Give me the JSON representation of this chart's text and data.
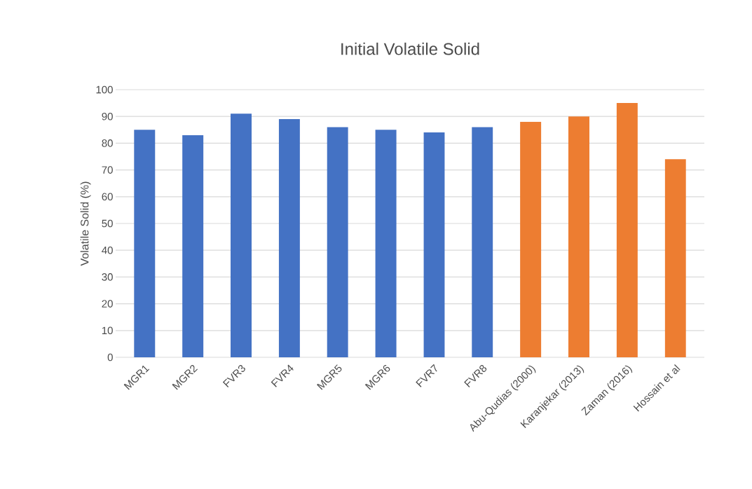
{
  "chart_data": {
    "type": "bar",
    "title": "Initial Volatile Solid",
    "ylabel": "Volatile Solid (%)",
    "categories": [
      "MGR1",
      "MGR2",
      "FVR3",
      "FVR4",
      "MGR5",
      "MGR6",
      "FVR7",
      "FVR8",
      "Abu-Qudias (2000)",
      "Karanjekar (2013)",
      "Zaman (2016)",
      "Hossain et al"
    ],
    "values": [
      85,
      83,
      91,
      89,
      86,
      85,
      84,
      86,
      88,
      90,
      95,
      74
    ],
    "colors": [
      "#4472c4",
      "#4472c4",
      "#4472c4",
      "#4472c4",
      "#4472c4",
      "#4472c4",
      "#4472c4",
      "#4472c4",
      "#ed7d31",
      "#ed7d31",
      "#ed7d31",
      "#ed7d31"
    ],
    "ylim": [
      0,
      100
    ],
    "yticks": [
      0,
      10,
      20,
      30,
      40,
      50,
      60,
      70,
      80,
      90,
      100
    ],
    "grid": "y"
  }
}
